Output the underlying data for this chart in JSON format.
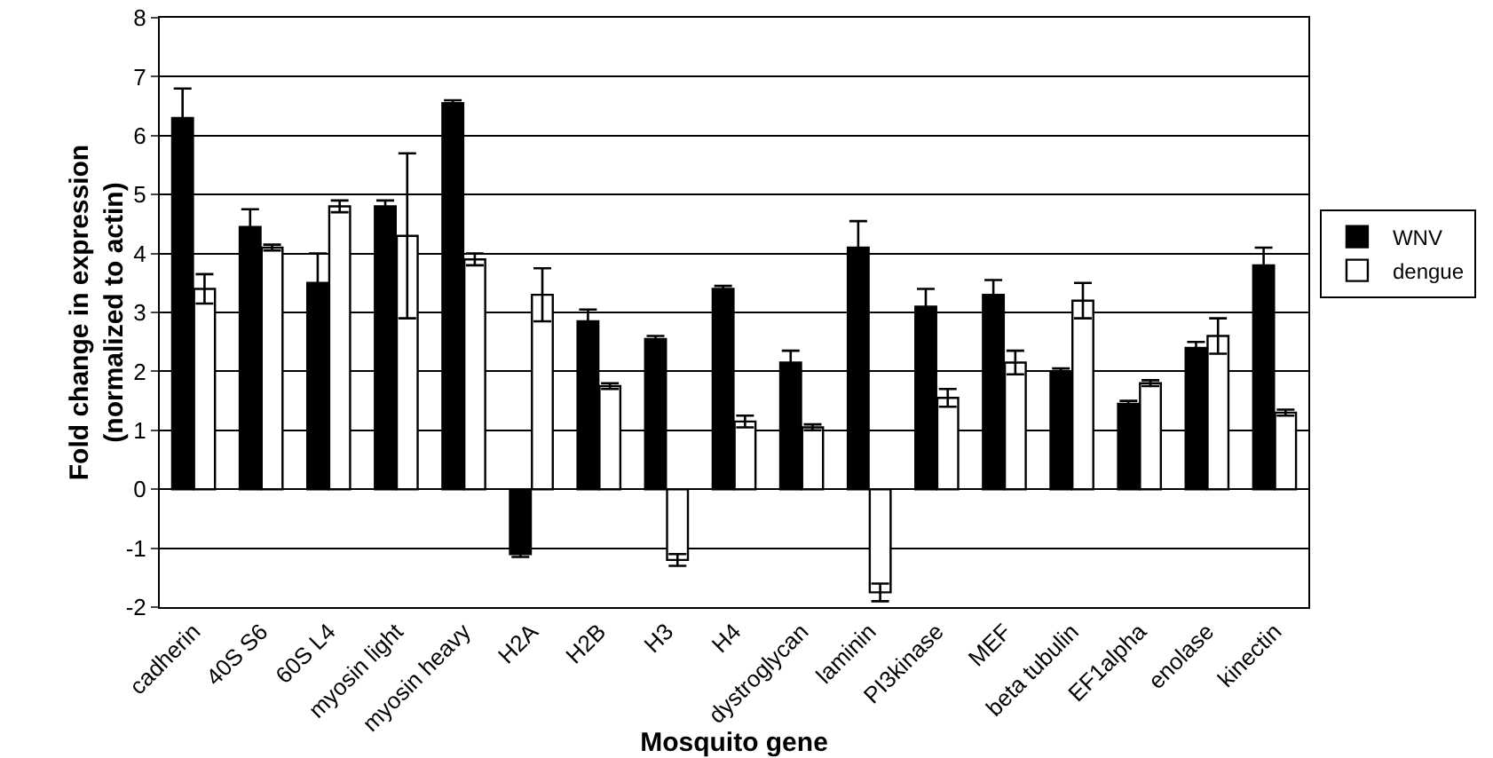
{
  "chart_data": {
    "type": "bar",
    "xlabel": "Mosquito gene",
    "ylabel": "Fold change in expression\n(normalized to actin)",
    "categories": [
      "cadherin",
      "40S S6",
      "60S L4",
      "myosin light",
      "myosin heavy",
      "H2A",
      "H2B",
      "H3",
      "H4",
      "dystroglycan",
      "laminin",
      "PI3kinase",
      "MEF",
      "beta tubulin",
      "EF1alpha",
      "enolase",
      "kinectin"
    ],
    "series": [
      {
        "name": "WNV",
        "color": "#000000",
        "values": [
          6.3,
          4.45,
          3.5,
          4.8,
          6.55,
          -1.1,
          2.85,
          2.55,
          3.4,
          2.15,
          4.1,
          3.1,
          3.3,
          2.0,
          1.45,
          2.4,
          3.8
        ],
        "errors": [
          0.5,
          0.3,
          0.5,
          0.1,
          0.05,
          0.05,
          0.2,
          0.05,
          0.05,
          0.2,
          0.45,
          0.3,
          0.25,
          0.05,
          0.05,
          0.1,
          0.3
        ]
      },
      {
        "name": "dengue",
        "color": "#ffffff",
        "values": [
          3.4,
          4.1,
          4.8,
          4.3,
          3.9,
          3.3,
          1.75,
          -1.2,
          1.15,
          1.05,
          -1.75,
          1.55,
          2.15,
          3.2,
          1.8,
          2.6,
          1.3
        ],
        "errors": [
          0.25,
          0.05,
          0.1,
          1.4,
          0.1,
          0.45,
          0.05,
          0.1,
          0.1,
          0.05,
          0.15,
          0.15,
          0.2,
          0.3,
          0.05,
          0.3,
          0.05
        ]
      }
    ],
    "ylim": [
      -2,
      8
    ],
    "yticks": [
      -2,
      -1,
      0,
      1,
      2,
      3,
      4,
      5,
      6,
      7,
      8
    ],
    "grid": "y",
    "legend": "right"
  }
}
